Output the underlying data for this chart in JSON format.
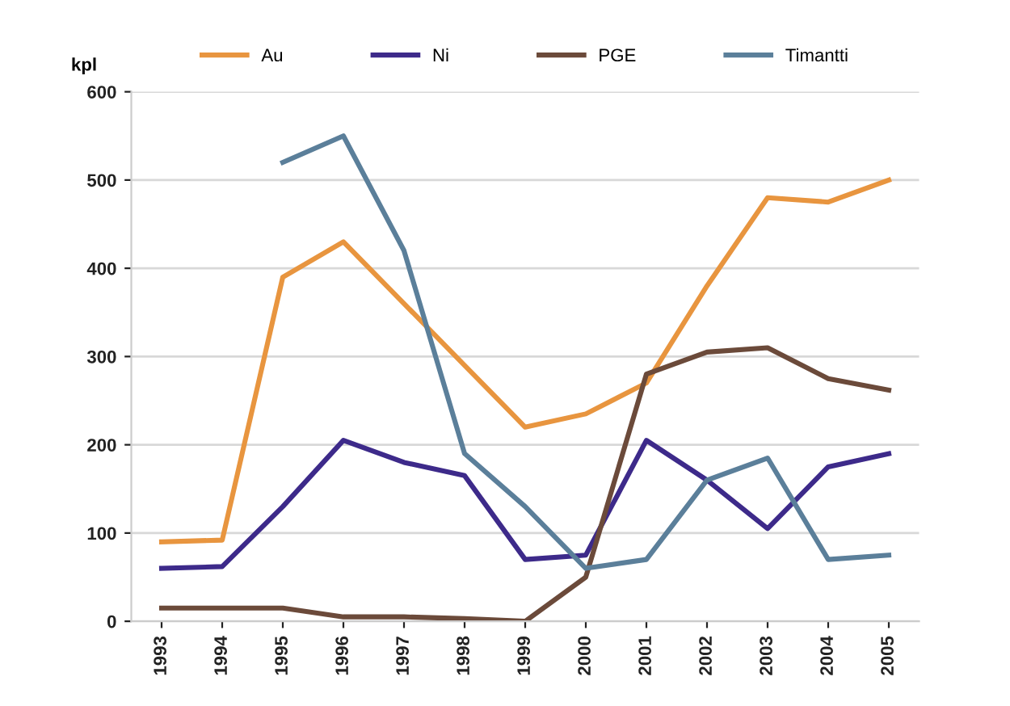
{
  "chart_data": {
    "type": "line",
    "ylabel": "kpl",
    "categories": [
      "1993",
      "1994",
      "1995",
      "1996",
      "1997",
      "1998",
      "1999",
      "2000",
      "2001",
      "2002",
      "2003",
      "2004",
      "2005"
    ],
    "series": [
      {
        "name": "Au",
        "color": "#e8953f",
        "values": [
          90,
          92,
          390,
          430,
          360,
          290,
          220,
          235,
          270,
          380,
          480,
          475,
          500
        ]
      },
      {
        "name": "Ni",
        "color": "#3d2a8a",
        "values": [
          60,
          62,
          130,
          205,
          180,
          165,
          70,
          75,
          205,
          160,
          105,
          175,
          190
        ]
      },
      {
        "name": "PGE",
        "color": "#6b4a3a",
        "values": [
          15,
          15,
          15,
          5,
          5,
          3,
          0,
          50,
          280,
          305,
          310,
          275,
          262
        ]
      },
      {
        "name": "Timantti",
        "color": "#5b7f9a",
        "values": [
          null,
          null,
          520,
          550,
          420,
          190,
          130,
          60,
          70,
          160,
          185,
          70,
          75
        ]
      }
    ],
    "ylim": [
      0,
      600
    ],
    "yticks": [
      0,
      100,
      200,
      300,
      400,
      500,
      600
    ],
    "grid": "y",
    "legend": "top",
    "marker": "none",
    "line_style": "solid"
  }
}
